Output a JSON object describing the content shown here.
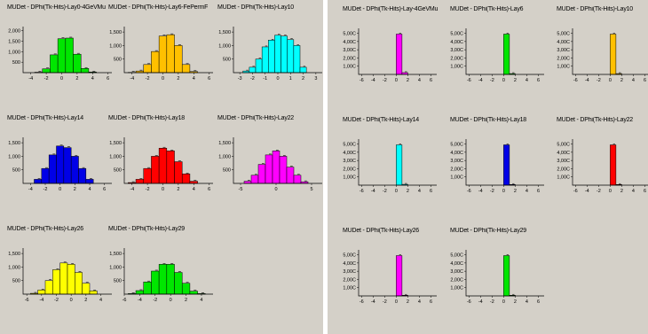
{
  "chart_data": [
    {
      "panel": "left",
      "type": "bar",
      "title": "MUDet - DPhi(Tk-Hits)-Lay0-4GeVMu",
      "color": "#00e600",
      "xlim": [
        -5,
        6.5
      ],
      "ylim": [
        0,
        2200
      ],
      "xticks": [
        -4,
        -2,
        0,
        2,
        4,
        6
      ],
      "yticks": [
        500,
        1000,
        1500,
        2000
      ],
      "yticklabels": [
        "500",
        "1,000",
        "1,500",
        "2,000"
      ],
      "bins": [
        [
          -3,
          20
        ],
        [
          -2,
          180
        ],
        [
          -1,
          850
        ],
        [
          0,
          1620
        ],
        [
          1,
          1650
        ],
        [
          2,
          880
        ],
        [
          3,
          200
        ],
        [
          4,
          30
        ]
      ]
    },
    {
      "panel": "left",
      "type": "bar",
      "title": "MUDet - DPhi(Tk-Hits)-Lay6-FePermF...",
      "color": "#ffc000",
      "xlim": [
        -5,
        6.5
      ],
      "ylim": [
        0,
        1700
      ],
      "xticks": [
        -4,
        -2,
        0,
        2,
        4,
        6
      ],
      "yticks": [
        500,
        1000,
        1500
      ],
      "yticklabels": [
        "500",
        "1,000",
        "1,500"
      ],
      "bins": [
        [
          -4,
          10
        ],
        [
          -3,
          60
        ],
        [
          -2,
          300
        ],
        [
          -1,
          780
        ],
        [
          0,
          1350
        ],
        [
          1,
          1400
        ],
        [
          2,
          1000
        ],
        [
          3,
          300
        ],
        [
          4,
          40
        ]
      ]
    },
    {
      "panel": "left",
      "type": "bar",
      "title": "MUDet - DPhi(Tk-Hits)-Lay10",
      "color": "#00ffff",
      "xlim": [
        -3.5,
        3.5
      ],
      "ylim": [
        0,
        1700
      ],
      "xticks": [
        -3,
        -2,
        -1,
        0,
        1,
        2,
        3
      ],
      "yticks": [
        500,
        1000,
        1500
      ],
      "yticklabels": [
        "500",
        "1,000",
        "1,500"
      ],
      "bins": [
        [
          -2.5,
          60
        ],
        [
          -2,
          200
        ],
        [
          -1.5,
          500
        ],
        [
          -1,
          950
        ],
        [
          -0.5,
          1200
        ],
        [
          0,
          1380
        ],
        [
          0.5,
          1350
        ],
        [
          1,
          1220
        ],
        [
          1.5,
          1000
        ],
        [
          2,
          200
        ]
      ]
    },
    {
      "panel": "left",
      "type": "bar",
      "title": "MUDet - DPhi(Tk-Hits)-Lay14",
      "color": "#0000e6",
      "xlim": [
        -5,
        7
      ],
      "ylim": [
        0,
        1700
      ],
      "xticks": [
        -4,
        -2,
        0,
        2,
        4,
        6
      ],
      "yticks": [
        500,
        1000,
        1500
      ],
      "yticklabels": [
        "500",
        "1,000",
        "1,500"
      ],
      "bins": [
        [
          -3,
          150
        ],
        [
          -2,
          550
        ],
        [
          -1,
          1050
        ],
        [
          0,
          1380
        ],
        [
          1,
          1320
        ],
        [
          2,
          1000
        ],
        [
          3,
          550
        ],
        [
          4,
          150
        ]
      ]
    },
    {
      "panel": "left",
      "type": "bar",
      "title": "MUDet - DPhi(Tk-Hits)-Lay18",
      "color": "#ff0000",
      "xlim": [
        -5,
        6.5
      ],
      "ylim": [
        0,
        1700
      ],
      "xticks": [
        -4,
        -2,
        0,
        2,
        4,
        6
      ],
      "yticks": [
        500,
        1000,
        1500
      ],
      "yticklabels": [
        "500",
        "1,000",
        "1,500"
      ],
      "bins": [
        [
          -4,
          30
        ],
        [
          -3,
          150
        ],
        [
          -2,
          550
        ],
        [
          -1,
          1000
        ],
        [
          0,
          1300
        ],
        [
          1,
          1200
        ],
        [
          2,
          800
        ],
        [
          3,
          350
        ],
        [
          4,
          80
        ]
      ]
    },
    {
      "panel": "left",
      "type": "bar",
      "title": "MUDet - DPhi(Tk-Hits)-Lay22",
      "color": "#ff00ff",
      "xlim": [
        -6,
        6.5
      ],
      "ylim": [
        0,
        1700
      ],
      "xticks": [
        -5,
        0,
        5
      ],
      "yticks": [
        500,
        1000,
        1500
      ],
      "yticklabels": [
        "500",
        "1,000",
        "1,500"
      ],
      "bins": [
        [
          -4,
          80
        ],
        [
          -3,
          300
        ],
        [
          -2,
          700
        ],
        [
          -1,
          1050
        ],
        [
          0,
          1200
        ],
        [
          1,
          1000
        ],
        [
          2,
          600
        ],
        [
          3,
          300
        ],
        [
          4,
          60
        ]
      ]
    },
    {
      "panel": "left",
      "type": "bar",
      "title": "MUDet - DPhi(Tk-Hits)-Lay26",
      "color": "#ffff00",
      "xlim": [
        -6.5,
        5.5
      ],
      "ylim": [
        0,
        1700
      ],
      "xticks": [
        -6,
        -4,
        -2,
        0,
        2,
        4
      ],
      "yticks": [
        500,
        1000,
        1500
      ],
      "yticklabels": [
        "500",
        "1,000",
        "1,500"
      ],
      "bins": [
        [
          -5,
          30
        ],
        [
          -4,
          150
        ],
        [
          -3,
          500
        ],
        [
          -2,
          900
        ],
        [
          -1,
          1150
        ],
        [
          0,
          1100
        ],
        [
          1,
          800
        ],
        [
          2,
          400
        ],
        [
          3,
          120
        ]
      ]
    },
    {
      "panel": "left",
      "type": "bar",
      "title": "MUDet - DPhi(Tk-Hits)-Lay29",
      "color": "#00e600",
      "xlim": [
        -6,
        5.5
      ],
      "ylim": [
        0,
        1700
      ],
      "xticks": [
        -6,
        -4,
        -2,
        0,
        2,
        4
      ],
      "yticks": [
        500,
        1000,
        1500
      ],
      "yticklabels": [
        "500",
        "1,000",
        "1,500"
      ],
      "bins": [
        [
          -5,
          20
        ],
        [
          -4,
          130
        ],
        [
          -3,
          450
        ],
        [
          -2,
          850
        ],
        [
          -1,
          1100
        ],
        [
          0,
          1100
        ],
        [
          1,
          800
        ],
        [
          2,
          400
        ],
        [
          3,
          110
        ],
        [
          4,
          20
        ]
      ]
    },
    {
      "panel": "right",
      "type": "bar",
      "title": "MUDet - DPhi(Tk-Hits)-Lay-4GeVMu",
      "color": "#ff00ff",
      "xlim": [
        -6.5,
        7
      ],
      "ylim": [
        0,
        5600
      ],
      "xticks": [
        -6,
        -4,
        -2,
        0,
        2,
        4,
        6
      ],
      "yticks": [
        1000,
        2000,
        3000,
        4000,
        5000
      ],
      "yticklabels": [
        "1,00C",
        "2,00C",
        "3,00C",
        "4,00C",
        "5,00C"
      ],
      "bins": [
        [
          0.5,
          4900
        ],
        [
          1.5,
          220
        ]
      ]
    },
    {
      "panel": "right",
      "type": "bar",
      "title": "MUDet - DPhi(Tk-Hits)-Lay6",
      "color": "#00e600",
      "xlim": [
        -6.5,
        7
      ],
      "ylim": [
        0,
        5600
      ],
      "xticks": [
        -6,
        -4,
        -2,
        0,
        2,
        4,
        6
      ],
      "yticks": [
        1000,
        2000,
        3000,
        4000,
        5000
      ],
      "yticklabels": [
        "1,00C",
        "2,00C",
        "3,00C",
        "4,00C",
        "5,00C"
      ],
      "bins": [
        [
          0.5,
          4900
        ],
        [
          1.5,
          100
        ]
      ]
    },
    {
      "panel": "right",
      "type": "bar",
      "title": "MUDet - DPhi(Tk-Hits)-Lay10",
      "color": "#ffc000",
      "xlim": [
        -6.5,
        7
      ],
      "ylim": [
        0,
        5600
      ],
      "xticks": [
        -6,
        -4,
        -2,
        0,
        2,
        4,
        6
      ],
      "yticks": [
        1000,
        2000,
        3000,
        4000,
        5000
      ],
      "yticklabels": [
        "1,00C",
        "2,00C",
        "3,00C",
        "4,00C",
        "5,00C"
      ],
      "bins": [
        [
          0.5,
          4900
        ],
        [
          1.5,
          100
        ]
      ]
    },
    {
      "panel": "right",
      "type": "bar",
      "title": "MUDet - DPhi(Tk-Hits)-Lay14",
      "color": "#00ffff",
      "xlim": [
        -6.5,
        7
      ],
      "ylim": [
        0,
        5600
      ],
      "xticks": [
        -6,
        -4,
        -2,
        0,
        2,
        4,
        6
      ],
      "yticks": [
        1000,
        2000,
        3000,
        4000,
        5000
      ],
      "yticklabels": [
        "1,00C",
        "2,00C",
        "3,00C",
        "4,00C",
        "5,00C"
      ],
      "bins": [
        [
          0.5,
          4900
        ],
        [
          1.5,
          100
        ]
      ]
    },
    {
      "panel": "right",
      "type": "bar",
      "title": "MUDet - DPhi(Tk-Hits)-Lay18",
      "color": "#0000e6",
      "xlim": [
        -6.5,
        7
      ],
      "ylim": [
        0,
        5600
      ],
      "xticks": [
        -6,
        -4,
        -2,
        0,
        2,
        4,
        6
      ],
      "yticks": [
        1000,
        2000,
        3000,
        4000,
        5000
      ],
      "yticklabels": [
        "1,00C",
        "2,00C",
        "3,00C",
        "4,00C",
        "5,00C"
      ],
      "bins": [
        [
          0.5,
          4900
        ],
        [
          1.5,
          80
        ]
      ]
    },
    {
      "panel": "right",
      "type": "bar",
      "title": "MUDet - DPhi(Tk-Hits)-Lay22",
      "color": "#ff0000",
      "xlim": [
        -6.5,
        7
      ],
      "ylim": [
        0,
        5600
      ],
      "xticks": [
        -6,
        -4,
        -2,
        0,
        2,
        4,
        6
      ],
      "yticks": [
        1000,
        2000,
        3000,
        4000,
        5000
      ],
      "yticklabels": [
        "1,00C",
        "2,00C",
        "3,00C",
        "4,00C",
        "5,00C"
      ],
      "bins": [
        [
          0.5,
          4900
        ],
        [
          1.5,
          80
        ]
      ]
    },
    {
      "panel": "right",
      "type": "bar",
      "title": "MUDet - DPhi(Tk-Hits)-Lay26",
      "color": "#ff00ff",
      "xlim": [
        -6.5,
        7
      ],
      "ylim": [
        0,
        5600
      ],
      "xticks": [
        -6,
        -4,
        -2,
        0,
        2,
        4,
        6
      ],
      "yticks": [
        1000,
        2000,
        3000,
        4000,
        5000
      ],
      "yticklabels": [
        "1,00C",
        "2,00C",
        "3,00C",
        "4,00C",
        "5,00C"
      ],
      "bins": [
        [
          0.5,
          4900
        ],
        [
          1.5,
          80
        ]
      ]
    },
    {
      "panel": "right",
      "type": "bar",
      "title": "MUDet - DPhi(Tk-Hits)-Lay29",
      "color": "#00e600",
      "xlim": [
        -6.5,
        7
      ],
      "ylim": [
        0,
        5600
      ],
      "xticks": [
        -6,
        -4,
        -2,
        0,
        2,
        4,
        6
      ],
      "yticks": [
        1000,
        2000,
        3000,
        4000,
        5000
      ],
      "yticklabels": [
        "1,00C",
        "2,00C",
        "3,00C",
        "4,00C",
        "5,00C"
      ],
      "bins": [
        [
          0.5,
          4900
        ],
        [
          1.5,
          80
        ]
      ]
    }
  ]
}
